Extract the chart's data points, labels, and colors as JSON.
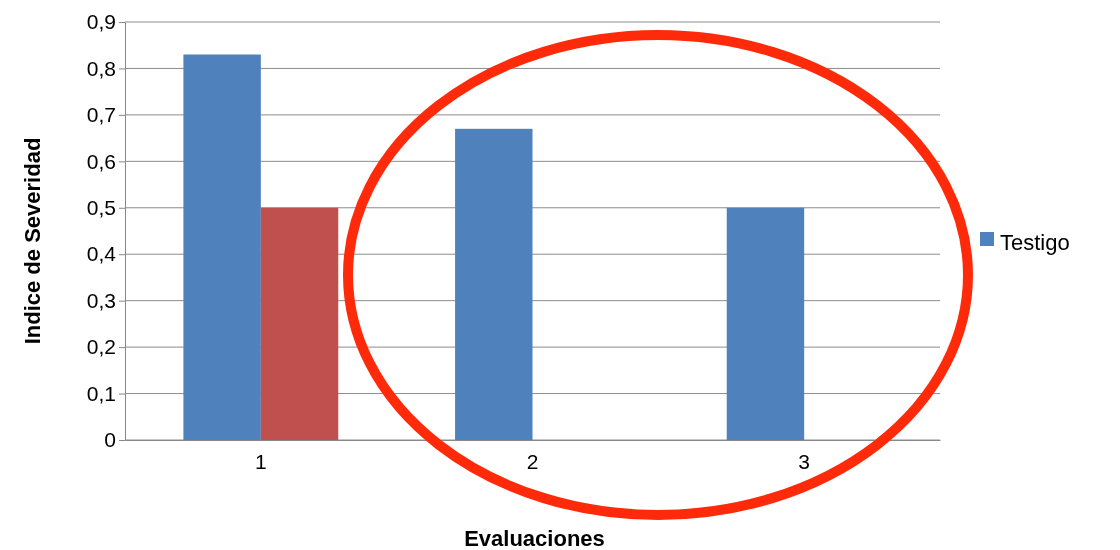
{
  "chart_data": {
    "type": "bar",
    "xlabel": "Evaluaciones",
    "ylabel": "Indice de Severidad",
    "categories": [
      "1",
      "2",
      "3"
    ],
    "series": [
      {
        "name": "Testigo",
        "color": "#4f81bd",
        "values": [
          0.83,
          0.67,
          0.5
        ]
      },
      {
        "color": "#c0504d",
        "values": [
          0.5,
          null,
          null
        ]
      }
    ],
    "ylim": [
      0,
      0.9
    ],
    "yticks": [
      {
        "value": 0,
        "label": "0"
      },
      {
        "value": 0.1,
        "label": "0,1"
      },
      {
        "value": 0.2,
        "label": "0,2"
      },
      {
        "value": 0.3,
        "label": "0,3"
      },
      {
        "value": 0.4,
        "label": "0,4"
      },
      {
        "value": 0.5,
        "label": "0,5"
      },
      {
        "value": 0.6,
        "label": "0,6"
      },
      {
        "value": 0.7,
        "label": "0,7"
      },
      {
        "value": 0.8,
        "label": "0,8"
      },
      {
        "value": 0.9,
        "label": "0,9"
      }
    ],
    "grid": "y",
    "legend": "right"
  }
}
